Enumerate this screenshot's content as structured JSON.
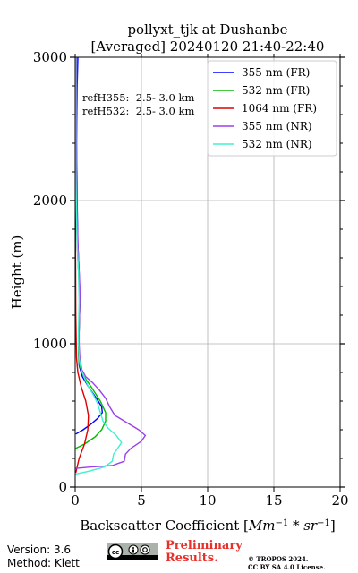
{
  "chart_data": {
    "type": "line",
    "title": "pollyxt_tjk at Dushanbe",
    "subtitle": "[Averaged] 20240120 21:40-22:40",
    "xlabel": "Backscatter Coefficient",
    "xlabel_units_html": "[<tspan font-style=\"italic\">Mm</tspan><tspan baseline-shift=\"super\" font-size=\"10\">−1</tspan><tspan font-style=\"italic\"> * sr</tspan><tspan baseline-shift=\"super\" font-size=\"10\">−1</tspan>]",
    "ylabel": "Height (m)",
    "xlim": [
      0,
      20
    ],
    "ylim": [
      0,
      3000
    ],
    "xticks": [
      "0",
      "5",
      "10",
      "15",
      "20"
    ],
    "yticks": [
      "0",
      "1000",
      "2000",
      "3000"
    ],
    "grid": true,
    "legend_position": "top-right",
    "annotations": [
      "refH355:  2.5- 3.0 km",
      "refH532:  2.5- 3.0 km"
    ],
    "series": [
      {
        "name": "355 nm (FR)",
        "color": "#0000ff",
        "points": [
          [
            0.05,
            370
          ],
          [
            0.6,
            400
          ],
          [
            1.2,
            440
          ],
          [
            1.7,
            480
          ],
          [
            2.05,
            520
          ],
          [
            2.0,
            560
          ],
          [
            1.6,
            620
          ],
          [
            1.0,
            700
          ],
          [
            0.55,
            770
          ],
          [
            0.3,
            850
          ],
          [
            0.25,
            950
          ],
          [
            0.3,
            1100
          ],
          [
            0.35,
            1300
          ],
          [
            0.3,
            1500
          ],
          [
            0.2,
            1700
          ],
          [
            0.15,
            2000
          ],
          [
            0.1,
            2400
          ],
          [
            0.15,
            2800
          ],
          [
            0.2,
            3000
          ]
        ]
      },
      {
        "name": "532 nm (FR)",
        "color": "#00bb00",
        "points": [
          [
            0.05,
            270
          ],
          [
            0.7,
            300
          ],
          [
            1.5,
            350
          ],
          [
            2.0,
            400
          ],
          [
            2.3,
            460
          ],
          [
            2.3,
            520
          ],
          [
            1.9,
            600
          ],
          [
            1.2,
            700
          ],
          [
            0.6,
            780
          ],
          [
            0.3,
            860
          ],
          [
            0.25,
            950
          ],
          [
            0.3,
            1100
          ],
          [
            0.35,
            1300
          ],
          [
            0.25,
            1500
          ],
          [
            0.15,
            1700
          ],
          [
            0.1,
            2000
          ],
          [
            0.05,
            2400
          ],
          [
            0.1,
            2800
          ],
          [
            0.1,
            3000
          ]
        ]
      },
      {
        "name": "1064 nm (FR)",
        "color": "#dd0000",
        "points": [
          [
            0.05,
            100
          ],
          [
            0.3,
            200
          ],
          [
            0.7,
            300
          ],
          [
            0.95,
            400
          ],
          [
            1.0,
            500
          ],
          [
            0.8,
            600
          ],
          [
            0.45,
            700
          ],
          [
            0.2,
            800
          ],
          [
            0.1,
            900
          ],
          [
            0.05,
            1200
          ],
          [
            0.03,
            1600
          ],
          [
            0.02,
            2000
          ],
          [
            0.02,
            2500
          ],
          [
            0.02,
            3000
          ]
        ]
      },
      {
        "name": "355 nm (NR)",
        "color": "#9b40e8",
        "points": [
          [
            0.0,
            130
          ],
          [
            1.2,
            140
          ],
          [
            2.8,
            150
          ],
          [
            3.7,
            180
          ],
          [
            3.8,
            230
          ],
          [
            4.2,
            270
          ],
          [
            5.0,
            320
          ],
          [
            5.3,
            360
          ],
          [
            4.8,
            400
          ],
          [
            3.9,
            450
          ],
          [
            3.0,
            500
          ],
          [
            2.6,
            560
          ],
          [
            2.3,
            620
          ],
          [
            1.8,
            680
          ],
          [
            1.3,
            730
          ],
          [
            0.8,
            770
          ],
          [
            0.5,
            820
          ],
          [
            0.35,
            900
          ],
          [
            0.3,
            1000
          ],
          [
            0.3,
            1100
          ],
          [
            0.35,
            1300
          ],
          [
            0.35,
            1400
          ],
          [
            0.3,
            1500
          ],
          [
            0.2,
            1700
          ],
          [
            0.15,
            1900
          ],
          [
            0.15,
            2100
          ],
          [
            0.1,
            2400
          ],
          [
            0.1,
            2700
          ],
          [
            0.1,
            3000
          ]
        ]
      },
      {
        "name": "532 nm (NR)",
        "color": "#40f0d0",
        "points": [
          [
            0.0,
            90
          ],
          [
            1.0,
            110
          ],
          [
            2.2,
            140
          ],
          [
            2.8,
            180
          ],
          [
            2.9,
            230
          ],
          [
            3.2,
            270
          ],
          [
            3.5,
            310
          ],
          [
            3.1,
            360
          ],
          [
            2.5,
            410
          ],
          [
            2.1,
            460
          ],
          [
            1.9,
            520
          ],
          [
            1.7,
            580
          ],
          [
            1.4,
            640
          ],
          [
            1.0,
            700
          ],
          [
            0.7,
            760
          ],
          [
            0.45,
            820
          ],
          [
            0.3,
            900
          ],
          [
            0.25,
            1000
          ],
          [
            0.25,
            1100
          ],
          [
            0.3,
            1300
          ],
          [
            0.25,
            1500
          ],
          [
            0.15,
            1700
          ],
          [
            0.1,
            1900
          ],
          [
            0.05,
            2200
          ],
          [
            0.05,
            2500
          ],
          [
            0.05,
            2800
          ],
          [
            0.05,
            3000
          ]
        ]
      }
    ]
  },
  "footer": {
    "version": "Version: 3.6",
    "method": "Method: Klett",
    "preliminary_line1": "Preliminary",
    "preliminary_line2": "Results.",
    "copyright_line1": "© TROPOS 2024.",
    "copyright_line2": "CC BY SA 4.0 License.",
    "license_badge": "cc-by-sa-icon"
  }
}
